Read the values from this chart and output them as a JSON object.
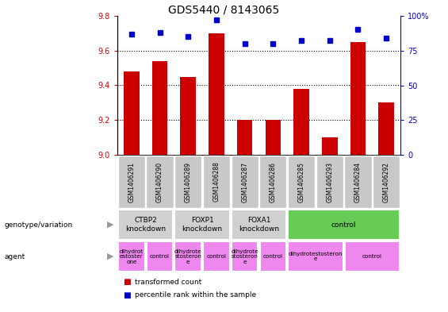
{
  "title": "GDS5440 / 8143065",
  "samples": [
    "GSM1406291",
    "GSM1406290",
    "GSM1406289",
    "GSM1406288",
    "GSM1406287",
    "GSM1406286",
    "GSM1406285",
    "GSM1406293",
    "GSM1406284",
    "GSM1406292"
  ],
  "bar_values": [
    9.48,
    9.54,
    9.45,
    9.7,
    9.2,
    9.2,
    9.38,
    9.1,
    9.65,
    9.3
  ],
  "percentile_values": [
    87,
    88,
    85,
    97,
    80,
    80,
    82,
    82,
    90,
    84
  ],
  "ymin": 9.0,
  "ymax": 9.8,
  "yticks_left": [
    9.0,
    9.2,
    9.4,
    9.6,
    9.8
  ],
  "yticks_right": [
    0,
    25,
    50,
    75,
    100
  ],
  "bar_color": "#cc0000",
  "dot_color": "#0000cc",
  "genotype_groups": [
    {
      "label": "CTBP2\nknockdown",
      "start": 0,
      "end": 2,
      "color": "#d0d0d0"
    },
    {
      "label": "FOXP1\nknockdown",
      "start": 2,
      "end": 4,
      "color": "#d0d0d0"
    },
    {
      "label": "FOXA1\nknockdown",
      "start": 4,
      "end": 6,
      "color": "#d0d0d0"
    },
    {
      "label": "control",
      "start": 6,
      "end": 10,
      "color": "#66cc55"
    }
  ],
  "agent_groups": [
    {
      "label": "dihydrot\nestoster\none",
      "start": 0,
      "end": 1,
      "color": "#ee88ee"
    },
    {
      "label": "control",
      "start": 1,
      "end": 2,
      "color": "#ee88ee"
    },
    {
      "label": "dihydrote\nstosteron\ne",
      "start": 2,
      "end": 3,
      "color": "#ee88ee"
    },
    {
      "label": "control",
      "start": 3,
      "end": 4,
      "color": "#ee88ee"
    },
    {
      "label": "dihydrote\nstosteron\ne",
      "start": 4,
      "end": 5,
      "color": "#ee88ee"
    },
    {
      "label": "control",
      "start": 5,
      "end": 6,
      "color": "#ee88ee"
    },
    {
      "label": "dihydrotestosteron\ne",
      "start": 6,
      "end": 8,
      "color": "#ee88ee"
    },
    {
      "label": "control",
      "start": 8,
      "end": 10,
      "color": "#ee88ee"
    }
  ],
  "legend_items": [
    {
      "label": "transformed count",
      "color": "#cc0000"
    },
    {
      "label": "percentile rank within the sample",
      "color": "#0000cc"
    }
  ],
  "sample_box_color": "#c8c8c8",
  "left_label_arrow_color": "#999999"
}
